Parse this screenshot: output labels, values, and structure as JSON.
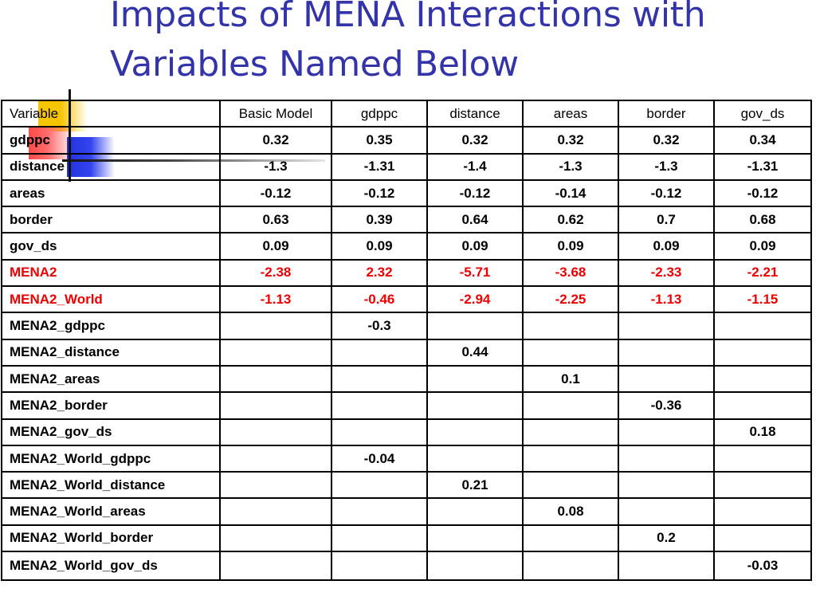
{
  "title_lines": [
    "Impacts of MENA Interactions with",
    "Variables Named Below"
  ],
  "columns": [
    "Variable",
    "Basic Model",
    "gdppc",
    "distance",
    "areas",
    "border",
    "gov_ds"
  ],
  "highlight_color": "#ee0000",
  "title_color": "#3333aa",
  "rows": [
    {
      "cells": [
        "gdppc",
        "0.32",
        "0.35",
        "0.32",
        "0.32",
        "0.32",
        "0.34"
      ]
    },
    {
      "cells": [
        "distance",
        "-1.3",
        "-1.31",
        "-1.4",
        "-1.3",
        "-1.3",
        "-1.31"
      ]
    },
    {
      "cells": [
        "areas",
        "-0.12",
        "-0.12",
        "-0.12",
        "-0.14",
        "-0.12",
        "-0.12"
      ]
    },
    {
      "cells": [
        "border",
        "0.63",
        "0.39",
        "0.64",
        "0.62",
        "0.7",
        "0.68"
      ]
    },
    {
      "cells": [
        "gov_ds",
        "0.09",
        "0.09",
        "0.09",
        "0.09",
        "0.09",
        "0.09"
      ]
    },
    {
      "cells": [
        "MENA2",
        "-2.38",
        "2.32",
        "-5.71",
        "-3.68",
        "-2.33",
        "-2.21"
      ],
      "highlight": true
    },
    {
      "cells": [
        "MENA2_World",
        "-1.13",
        "-0.46",
        "-2.94",
        "-2.25",
        "-1.13",
        "-1.15"
      ],
      "highlight": true
    },
    {
      "cells": [
        "MENA2_gdppc",
        "",
        "-0.3",
        "",
        "",
        "",
        ""
      ]
    },
    {
      "cells": [
        "MENA2_distance",
        "",
        "",
        "0.44",
        "",
        "",
        ""
      ]
    },
    {
      "cells": [
        "MENA2_areas",
        "",
        "",
        "",
        "0.1",
        "",
        ""
      ]
    },
    {
      "cells": [
        "MENA2_border",
        "",
        "",
        "",
        "",
        "-0.36",
        ""
      ]
    },
    {
      "cells": [
        "MENA2_gov_ds",
        "",
        "",
        "",
        "",
        "",
        "0.18"
      ]
    },
    {
      "cells": [
        "MENA2_World_gdppc",
        "",
        "-0.04",
        "",
        "",
        "",
        ""
      ]
    },
    {
      "cells": [
        "MENA2_World_distance",
        "",
        "",
        "0.21",
        "",
        "",
        ""
      ]
    },
    {
      "cells": [
        "MENA2_World_areas",
        "",
        "",
        "",
        "0.08",
        "",
        ""
      ]
    },
    {
      "cells": [
        "MENA2_World_border",
        "",
        "",
        "",
        "",
        "0.2",
        ""
      ]
    },
    {
      "cells": [
        "MENA2_World_gov_ds",
        "",
        "",
        "",
        "",
        "",
        "-0.03"
      ]
    }
  ]
}
